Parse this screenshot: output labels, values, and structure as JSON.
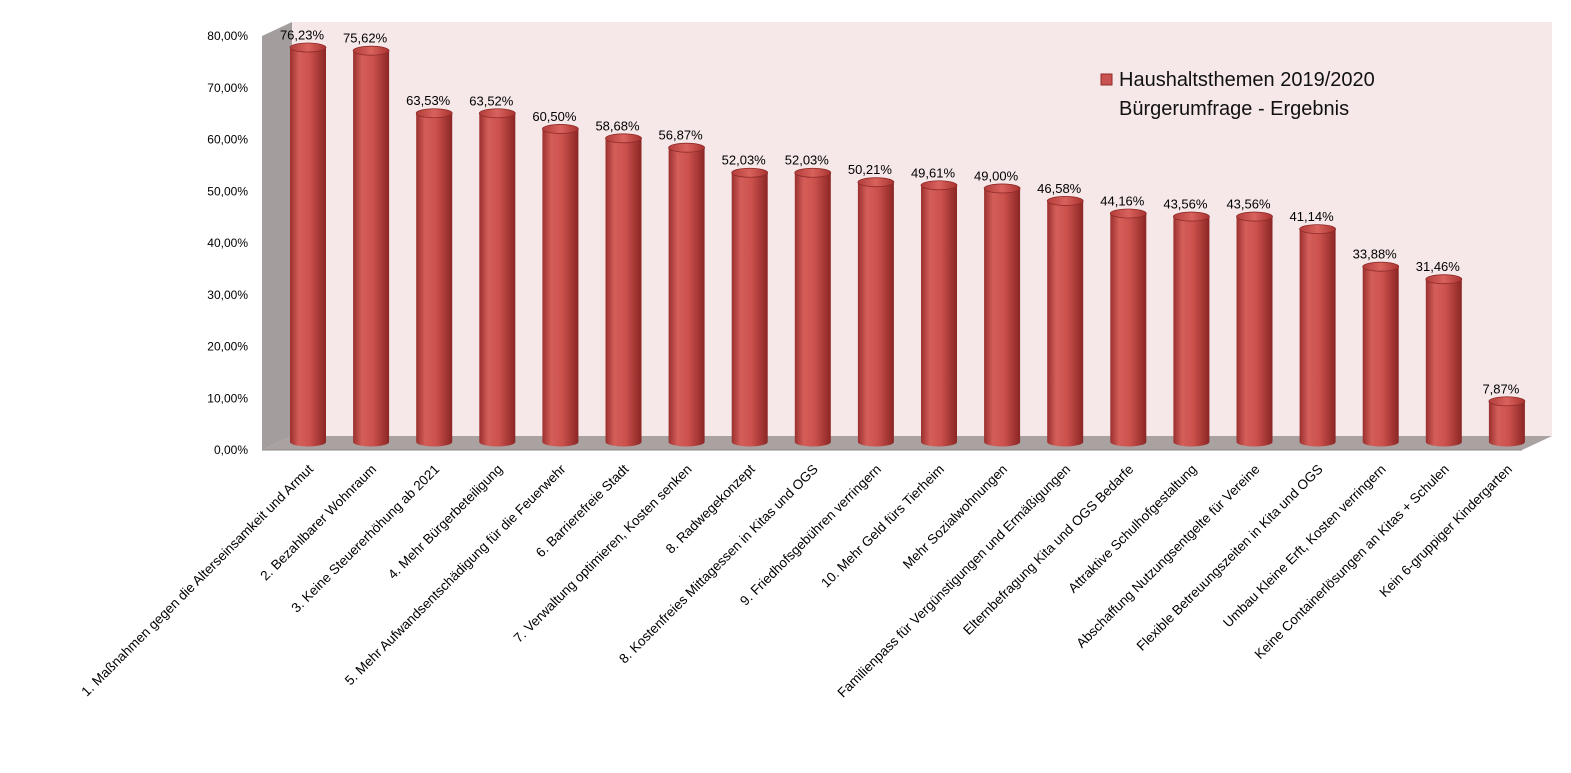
{
  "chart_data": {
    "type": "bar",
    "style": "3d-cylinder",
    "categories": [
      "1. Maßnahmen gegen die Alterseinsamkeit und Armut",
      "2. Bezahlbarer Wohnraum",
      "3. Keine Steuererhöhung  ab 2021",
      "4. Mehr  Bürgerbeteiligung",
      "5. Mehr Aufwandsentschädigung für die Feuerwehr",
      "6. Barrierefreie Stadt",
      "7. Verwaltung optimieren, Kosten senken",
      "8. Radwegekonzept",
      "8. Kostenfreies Mittagessen in Kitas und OGS",
      "9. Friedhofsgebühren verringern",
      "10. Mehr Geld fürs Tierheim",
      "Mehr Sozialwohnungen",
      "Familienpass für Vergünstigungen und Ermäßigungen",
      "Elternbefragung  Kita und OGS Bedarfe",
      "Attraktive Schulhofgestaltung",
      "Abschaffung Nutzungsentgelte für Vereine",
      "Flexible Betreuungszeiten in Kita und OGS",
      "Umbau Kleine Erft, Kosten verringern",
      "Keine Containerlösungen an Kitas + Schulen",
      "Kein 6-gruppiger Kindergarten"
    ],
    "values": [
      76.23,
      75.62,
      63.53,
      63.52,
      60.5,
      58.68,
      56.87,
      52.03,
      52.03,
      50.21,
      49.61,
      49.0,
      46.58,
      44.16,
      43.56,
      43.56,
      41.14,
      33.88,
      31.46,
      7.87
    ],
    "data_labels": [
      "76,23%",
      "75,62%",
      "63,53%",
      "63,52%",
      "60,50%",
      "58,68%",
      "56,87%",
      "52,03%",
      "52,03%",
      "50,21%",
      "49,61%",
      "49,00%",
      "46,58%",
      "44,16%",
      "43,56%",
      "43,56%",
      "41,14%",
      "33,88%",
      "31,46%",
      "7,87%"
    ],
    "ylim": [
      0,
      80
    ],
    "yticks": [
      0,
      10,
      20,
      30,
      40,
      50,
      60,
      70,
      80
    ],
    "ytick_labels": [
      "0,00%",
      "10,00%",
      "20,00%",
      "30,00%",
      "40,00%",
      "50,00%",
      "60,00%",
      "70,00%",
      "80,00%"
    ],
    "legend": {
      "placement": "top-right",
      "entries": [
        "Haushaltsthemen 2019/2020",
        "Bürgerumfrage - Ergebnis"
      ]
    },
    "colors": {
      "bar": "#c9514f",
      "bar_dark": "#8e2a28",
      "bar_light": "#e07a74",
      "back_wall": "#f6e8e9",
      "side_wall": "#a39d9d",
      "floor": "#aaa1a1"
    },
    "xlabel": "",
    "ylabel": "",
    "grid": false
  }
}
